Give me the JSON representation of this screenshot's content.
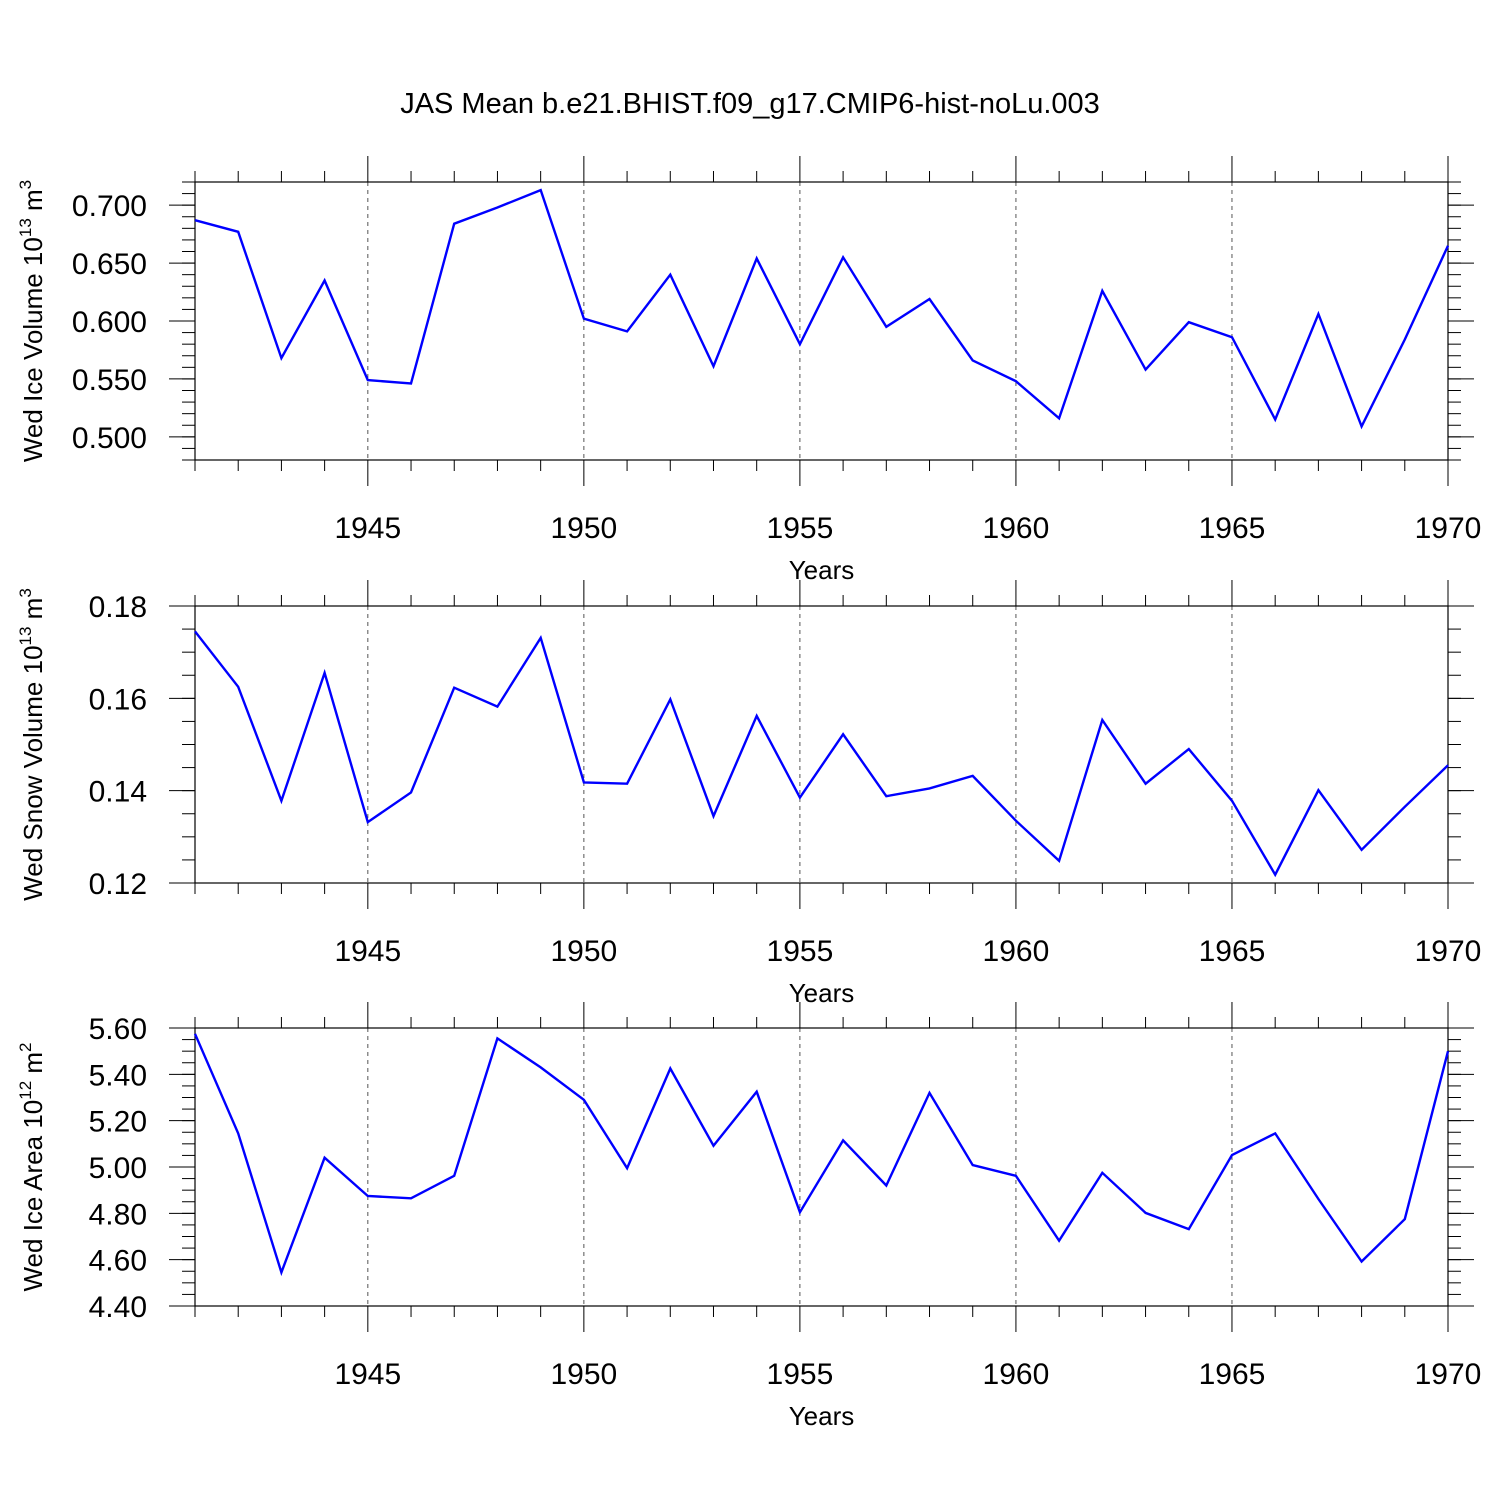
{
  "figure_title": "JAS Mean b.e21.BHIST.f09_g17.CMIP6-hist-noLu.003",
  "colors": {
    "line": "#0000ff",
    "axis": "#000000",
    "grid": "#555555"
  },
  "chart_data": [
    {
      "type": "line",
      "title": "",
      "xlabel": "Years",
      "ylabel": "Wed Ice Volume 10",
      "ylabel_exp": "13",
      "ylabel_unit": " m",
      "ylabel_unit_exp": "3",
      "xlim": [
        1941,
        1970
      ],
      "ylim": [
        0.48,
        0.72
      ],
      "xticks": [
        1945,
        1950,
        1955,
        1960,
        1965,
        1970
      ],
      "xtick_labels": [
        "1945",
        "1950",
        "1955",
        "1960",
        "1965",
        "1970"
      ],
      "yticks": [
        0.5,
        0.55,
        0.6,
        0.65,
        0.7
      ],
      "ytick_labels": [
        "0.500",
        "0.550",
        "0.600",
        "0.650",
        "0.700"
      ],
      "yminor_step": 0.01,
      "grid": "x-dashed",
      "series": [
        {
          "name": "Wed Ice Volume",
          "x": [
            1941,
            1942,
            1943,
            1944,
            1945,
            1946,
            1947,
            1948,
            1949,
            1950,
            1951,
            1952,
            1953,
            1954,
            1955,
            1956,
            1957,
            1958,
            1959,
            1960,
            1961,
            1962,
            1963,
            1964,
            1965,
            1966,
            1967,
            1968,
            1969,
            1970
          ],
          "values": [
            0.687,
            0.677,
            0.568,
            0.635,
            0.549,
            0.546,
            0.684,
            0.698,
            0.713,
            0.602,
            0.591,
            0.64,
            0.561,
            0.654,
            0.58,
            0.655,
            0.595,
            0.619,
            0.566,
            0.548,
            0.516,
            0.626,
            0.558,
            0.599,
            0.586,
            0.515,
            0.606,
            0.509,
            0.584,
            0.665
          ]
        }
      ]
    },
    {
      "type": "line",
      "title": "",
      "xlabel": "Years",
      "ylabel": "Wed Snow Volume 10",
      "ylabel_exp": "13",
      "ylabel_unit": " m",
      "ylabel_unit_exp": "3",
      "xlim": [
        1941,
        1970
      ],
      "ylim": [
        0.12,
        0.18
      ],
      "xticks": [
        1945,
        1950,
        1955,
        1960,
        1965,
        1970
      ],
      "xtick_labels": [
        "1945",
        "1950",
        "1955",
        "1960",
        "1965",
        "1970"
      ],
      "yticks": [
        0.12,
        0.14,
        0.16,
        0.18
      ],
      "ytick_labels": [
        "0.12",
        "0.14",
        "0.16",
        "0.18"
      ],
      "yminor_step": 0.005,
      "grid": "x-dashed",
      "series": [
        {
          "name": "Wed Snow Volume",
          "x": [
            1941,
            1942,
            1943,
            1944,
            1945,
            1946,
            1947,
            1948,
            1949,
            1950,
            1951,
            1952,
            1953,
            1954,
            1955,
            1956,
            1957,
            1958,
            1959,
            1960,
            1961,
            1962,
            1963,
            1964,
            1965,
            1966,
            1967,
            1968,
            1969,
            1970
          ],
          "values": [
            0.1745,
            0.1625,
            0.1378,
            0.1655,
            0.1332,
            0.1396,
            0.1623,
            0.1582,
            0.1731,
            0.1418,
            0.1415,
            0.1598,
            0.1345,
            0.1562,
            0.1385,
            0.1522,
            0.1388,
            0.1405,
            0.1432,
            0.1335,
            0.1248,
            0.1553,
            0.1415,
            0.149,
            0.1378,
            0.1218,
            0.1401,
            0.1272,
            0.1365,
            0.1455
          ]
        }
      ]
    },
    {
      "type": "line",
      "title": "",
      "xlabel": "Years",
      "ylabel": "Wed Ice Area 10",
      "ylabel_exp": "12",
      "ylabel_unit": " m",
      "ylabel_unit_exp": "2",
      "xlim": [
        1941,
        1970
      ],
      "ylim": [
        4.4,
        5.6
      ],
      "xticks": [
        1945,
        1950,
        1955,
        1960,
        1965,
        1970
      ],
      "xtick_labels": [
        "1945",
        "1950",
        "1955",
        "1960",
        "1965",
        "1970"
      ],
      "yticks": [
        4.4,
        4.6,
        4.8,
        5.0,
        5.2,
        5.4,
        5.6
      ],
      "ytick_labels": [
        "4.40",
        "4.60",
        "4.80",
        "5.00",
        "5.20",
        "5.40",
        "5.60"
      ],
      "yminor_step": 0.05,
      "grid": "x-dashed",
      "series": [
        {
          "name": "Wed Ice Area",
          "x": [
            1941,
            1942,
            1943,
            1944,
            1945,
            1946,
            1947,
            1948,
            1949,
            1950,
            1951,
            1952,
            1953,
            1954,
            1955,
            1956,
            1957,
            1958,
            1959,
            1960,
            1961,
            1962,
            1963,
            1964,
            1965,
            1966,
            1967,
            1968,
            1969,
            1970
          ],
          "values": [
            5.575,
            5.145,
            4.545,
            5.04,
            4.875,
            4.865,
            4.962,
            5.555,
            5.43,
            5.29,
            4.995,
            5.425,
            5.092,
            5.325,
            4.805,
            5.115,
            4.92,
            5.32,
            5.008,
            4.962,
            4.682,
            4.975,
            4.802,
            4.732,
            5.052,
            5.145,
            4.862,
            4.592,
            4.775,
            5.5
          ]
        }
      ]
    }
  ]
}
